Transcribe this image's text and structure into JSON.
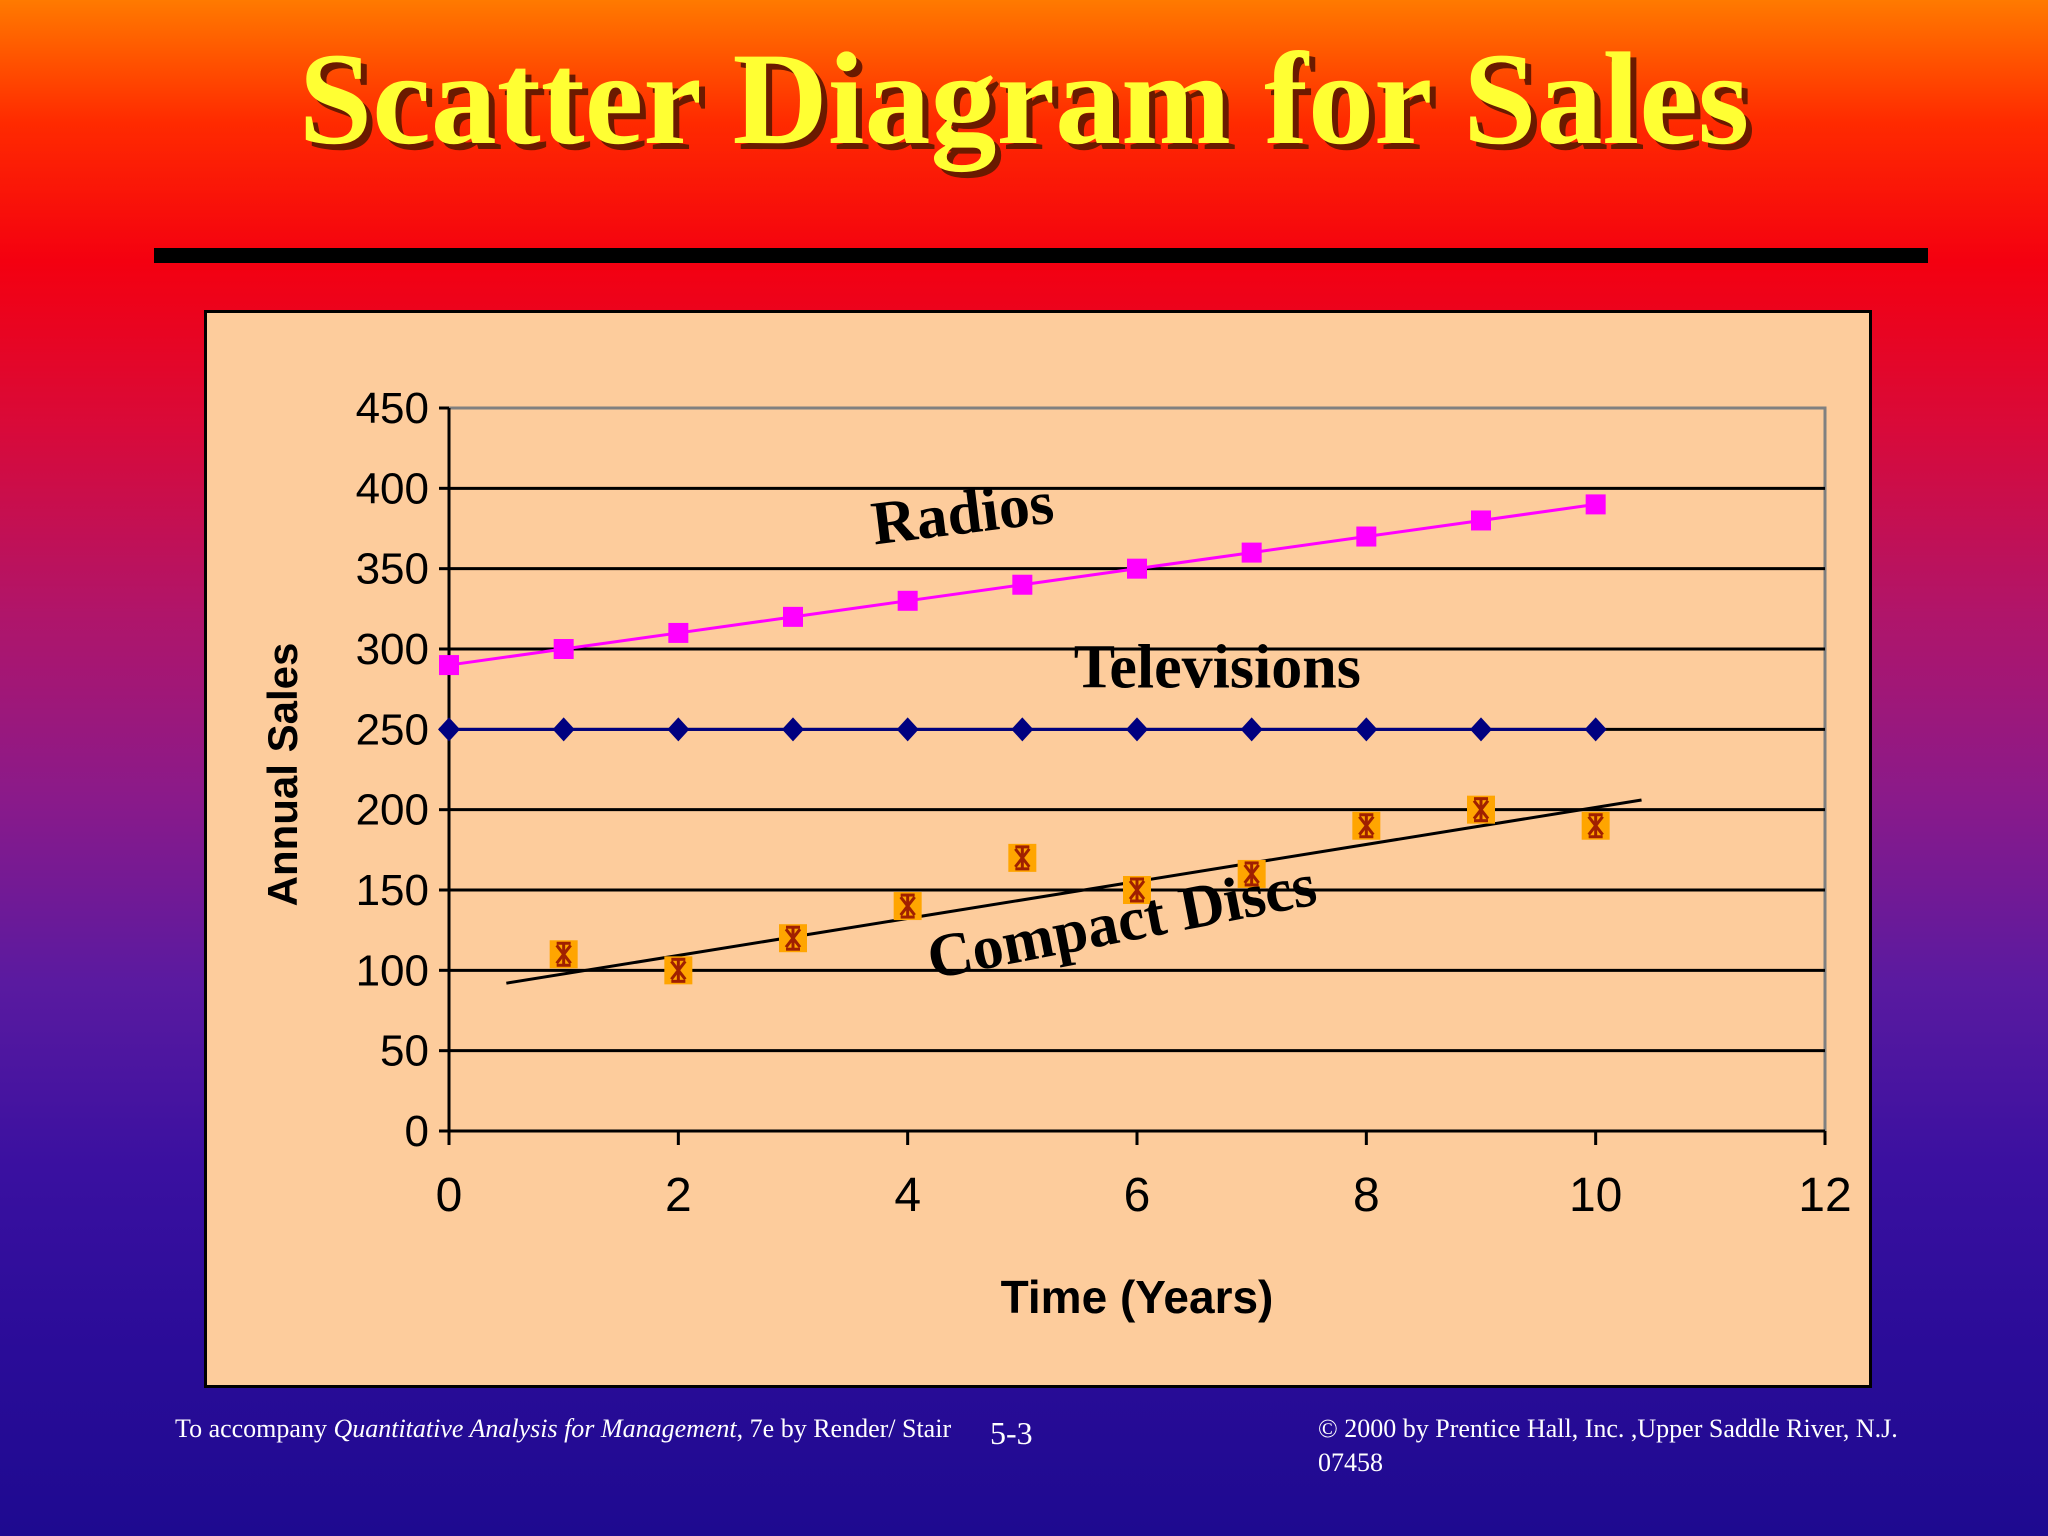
{
  "slide": {
    "title": "Scatter Diagram for Sales",
    "page_number": "5-3",
    "footer_left_prefix": "To accompany ",
    "footer_left_book": "Quantitative Analysis for Management",
    "footer_left_suffix": ", 7e by Render/ Stair",
    "footer_right": "© 2000 by Prentice Hall, Inc. ,Upper Saddle River, N.J. 07458"
  },
  "chart_data": {
    "type": "scatter",
    "title": "",
    "xlabel": "Time (Years)",
    "ylabel": "Annual Sales",
    "xlim": [
      0,
      12
    ],
    "ylim": [
      0,
      450
    ],
    "xticks": [
      0,
      2,
      4,
      6,
      8,
      10,
      12
    ],
    "yticks": [
      0,
      50,
      100,
      150,
      200,
      250,
      300,
      350,
      400,
      450
    ],
    "grid": "horizontal",
    "legend": "none",
    "series": [
      {
        "name": "Radios",
        "marker": "square",
        "color": "#ff00ff",
        "connected": true,
        "x": [
          0,
          1,
          2,
          3,
          4,
          5,
          6,
          7,
          8,
          9,
          10
        ],
        "y": [
          290,
          300,
          310,
          320,
          330,
          340,
          350,
          360,
          370,
          380,
          390
        ]
      },
      {
        "name": "Televisions",
        "marker": "diamond",
        "color": "#000080",
        "connected": true,
        "x": [
          0,
          1,
          2,
          3,
          4,
          5,
          6,
          7,
          8,
          9,
          10
        ],
        "y": [
          250,
          250,
          250,
          250,
          250,
          250,
          250,
          250,
          250,
          250,
          250
        ]
      },
      {
        "name": "Compact Discs",
        "marker": "asterisk-square",
        "color": "#ffa500",
        "connected": false,
        "x": [
          1,
          2,
          3,
          4,
          5,
          6,
          7,
          8,
          9,
          10
        ],
        "y": [
          110,
          100,
          120,
          140,
          170,
          150,
          160,
          190,
          200,
          190
        ]
      }
    ],
    "trendlines": [
      {
        "series": "Compact Discs",
        "x": [
          0.5,
          10.4
        ],
        "y": [
          92,
          206
        ]
      }
    ],
    "annotations": [
      {
        "text": "Radios",
        "x": 4.5,
        "y": 372,
        "rotate": -7
      },
      {
        "text": "Televisions",
        "x": 6.7,
        "y": 276,
        "rotate": 0
      },
      {
        "text": "Compact Discs",
        "x": 5.9,
        "y": 118,
        "rotate": -11
      }
    ]
  }
}
